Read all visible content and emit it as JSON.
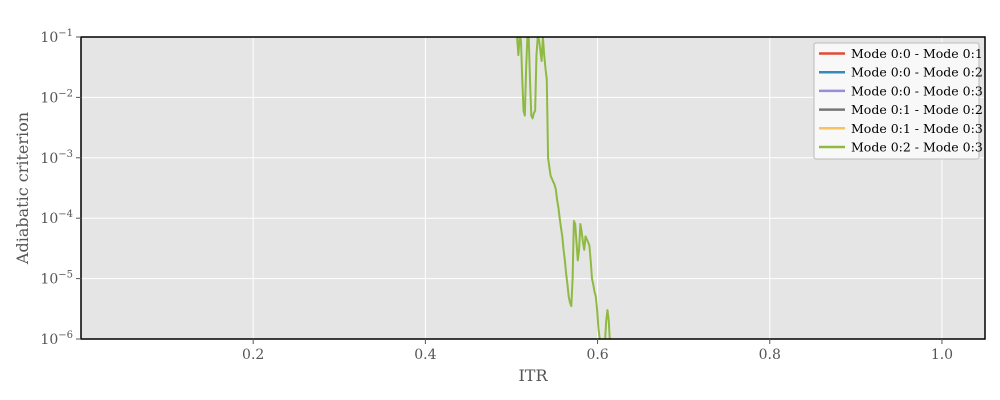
{
  "chart_data": {
    "type": "line",
    "title": "",
    "xlabel": "ITR",
    "ylabel": "Adiabatic criterion",
    "xlim": [
      0.0,
      1.05
    ],
    "ylim": [
      1e-06,
      0.1
    ],
    "yscale": "log",
    "grid": true,
    "legend_position": "top-right",
    "x_ticks": [
      {
        "value": 0.2,
        "label": "0.2"
      },
      {
        "value": 0.4,
        "label": "0.4"
      },
      {
        "value": 0.6,
        "label": "0.6"
      },
      {
        "value": 0.8,
        "label": "0.8"
      },
      {
        "value": 1.0,
        "label": "1.0"
      }
    ],
    "y_ticks": [
      {
        "value": 1e-06,
        "base": "10",
        "exp": "−6"
      },
      {
        "value": 1e-05,
        "base": "10",
        "exp": "−5"
      },
      {
        "value": 0.0001,
        "base": "10",
        "exp": "−4"
      },
      {
        "value": 0.001,
        "base": "10",
        "exp": "−3"
      },
      {
        "value": 0.01,
        "base": "10",
        "exp": "−2"
      },
      {
        "value": 0.1,
        "base": "10",
        "exp": "−1"
      }
    ],
    "series": [
      {
        "name": "Mode 0:0 - Mode 0:1",
        "color": "#E24A33",
        "x": [],
        "y": []
      },
      {
        "name": "Mode 0:0 - Mode 0:2",
        "color": "#348ABD",
        "x": [],
        "y": []
      },
      {
        "name": "Mode 0:0 - Mode 0:3",
        "color": "#988ED5",
        "x": [],
        "y": []
      },
      {
        "name": "Mode 0:1 - Mode 0:2",
        "color": "#777777",
        "x": [],
        "y": []
      },
      {
        "name": "Mode 0:1 - Mode 0:3",
        "color": "#FBC15E",
        "x": [],
        "y": []
      },
      {
        "name": "Mode 0:2 - Mode 0:3",
        "color": "#8EBA42",
        "x": [
          0.5065,
          0.508,
          0.5095,
          0.511,
          0.5125,
          0.514,
          0.5155,
          0.517,
          0.5185,
          0.52,
          0.5215,
          0.523,
          0.5245,
          0.526,
          0.5275,
          0.529,
          0.5305,
          0.532,
          0.5335,
          0.535,
          0.5365,
          0.538,
          0.5395,
          0.541,
          0.5425,
          0.544,
          0.5455,
          0.547,
          0.5485,
          0.55,
          0.5515,
          0.553,
          0.5545,
          0.556,
          0.5575,
          0.559,
          0.5605,
          0.562,
          0.5635,
          0.565,
          0.5665,
          0.568,
          0.5695,
          0.571,
          0.5725,
          0.574,
          0.5755,
          0.577,
          0.5785,
          0.58,
          0.5815,
          0.583,
          0.5845,
          0.586,
          0.5875,
          0.589,
          0.5905,
          0.592,
          0.5935,
          0.595,
          0.5965,
          0.598,
          0.5995,
          0.601,
          0.6025,
          0.604,
          0.6055,
          0.607,
          0.6085,
          0.61,
          0.6115,
          0.613,
          0.6145
        ],
        "y": [
          0.1,
          0.05,
          0.1,
          0.09,
          0.02,
          0.006,
          0.005,
          0.03,
          0.1,
          0.1,
          0.02,
          0.005,
          0.0045,
          0.0055,
          0.006,
          0.05,
          0.1,
          0.09,
          0.06,
          0.04,
          0.1,
          0.05,
          0.03,
          0.02,
          0.001,
          0.0007,
          0.0005,
          0.00045,
          0.0004,
          0.00036,
          0.0003,
          0.0002,
          0.00015,
          0.0001,
          7e-05,
          5e-05,
          3e-05,
          2e-05,
          1.2e-05,
          8e-06,
          5e-06,
          4e-06,
          3.5e-06,
          1e-05,
          9e-05,
          8e-05,
          4e-05,
          2e-05,
          3e-05,
          8e-05,
          6e-05,
          4e-05,
          3e-05,
          5e-05,
          4.5e-05,
          4e-05,
          3.5e-05,
          2e-05,
          1e-05,
          8e-06,
          6e-06,
          5e-06,
          3e-06,
          1.5e-06,
          1e-06,
          8e-07,
          6e-07,
          6e-07,
          8e-07,
          2e-06,
          3e-06,
          2e-06,
          8e-07
        ]
      }
    ]
  }
}
